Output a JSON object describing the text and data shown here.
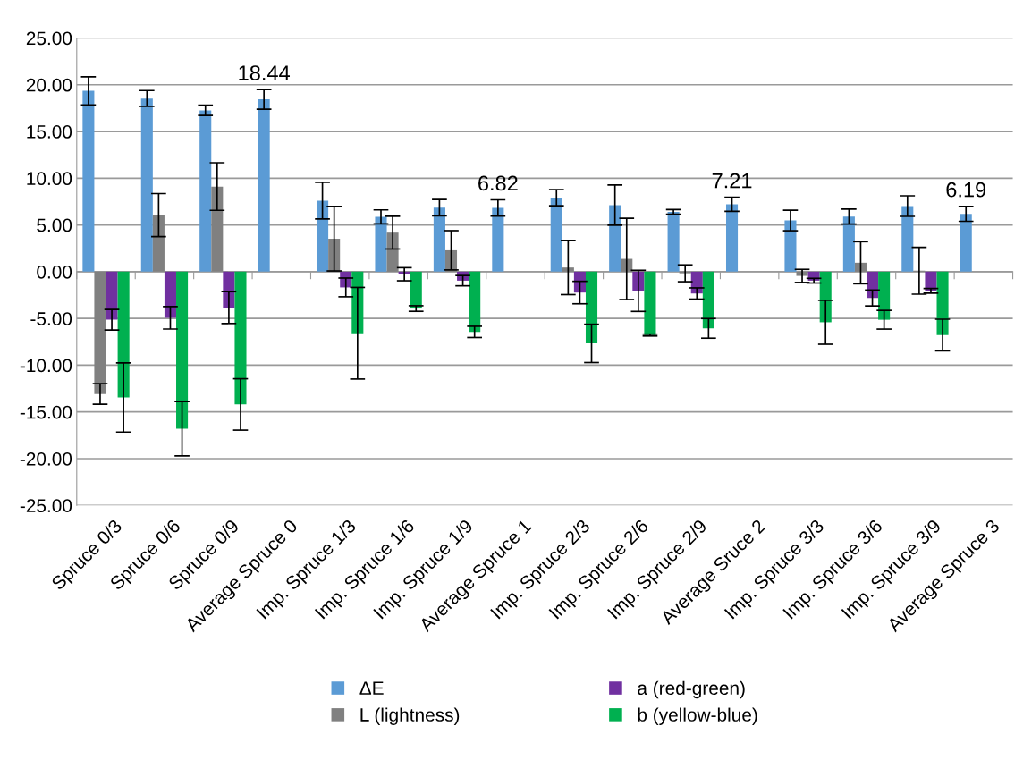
{
  "chart_data": {
    "type": "bar",
    "categories": [
      "Spruce 0/3",
      "Spruce 0/6",
      "Spruce 0/9",
      "Average Spruce 0",
      "Imp. Spruce 1/3",
      "Imp. Spruce 1/6",
      "Imp. Spruce 1/9",
      "Average Spruce 1",
      "Imp. Spruce 2/3",
      "Imp. Spruce 2/6",
      "Imp. Spruce 2/9",
      "Average Sruce 2",
      "Imp. Spruce 3/3",
      "Imp. Spruce 3/6",
      "Imp. Spruce 3/9",
      "Average Spruce 3"
    ],
    "series": [
      {
        "name": "ΔE",
        "color": "#5b9bd5",
        "values": [
          19.35,
          18.53,
          17.26,
          18.44,
          7.6,
          5.86,
          6.85,
          6.82,
          7.91,
          7.12,
          6.4,
          7.21,
          5.48,
          5.89,
          7.02,
          6.19
        ],
        "errors": [
          1.5,
          0.85,
          0.55,
          1.05,
          1.95,
          0.75,
          0.87,
          0.87,
          0.86,
          2.15,
          0.25,
          0.75,
          1.1,
          0.8,
          1.1,
          0.8
        ],
        "value_labels": [
          null,
          null,
          null,
          "18.44",
          null,
          null,
          null,
          "6.82",
          null,
          null,
          null,
          "7.21",
          null,
          null,
          null,
          "6.19"
        ]
      },
      {
        "name": "L (lightness)",
        "color": "#808080",
        "values": [
          -13.08,
          6.06,
          9.11,
          null,
          3.53,
          4.18,
          2.29,
          null,
          0.45,
          1.37,
          -0.17,
          null,
          -0.45,
          0.96,
          0.1,
          null
        ],
        "errors": [
          1.1,
          2.3,
          2.55,
          null,
          3.45,
          1.75,
          2.1,
          null,
          2.9,
          4.35,
          0.9,
          null,
          0.7,
          2.25,
          2.5,
          null
        ]
      },
      {
        "name": "a (red-green)",
        "color": "#7030a0",
        "values": [
          -5.14,
          -4.93,
          -3.84,
          null,
          -1.68,
          -0.27,
          -0.96,
          null,
          -2.23,
          -2.05,
          -2.33,
          null,
          -0.96,
          -2.81,
          -2.05,
          null
        ],
        "errors": [
          1.1,
          1.2,
          1.7,
          null,
          1.0,
          0.7,
          0.55,
          null,
          1.2,
          2.2,
          0.6,
          null,
          0.25,
          0.85,
          0.25,
          null
        ]
      },
      {
        "name": "b (yellow-blue)",
        "color": "#00b050",
        "values": [
          -13.46,
          -16.8,
          -14.2,
          null,
          -6.58,
          -3.94,
          -6.44,
          null,
          -7.67,
          -6.78,
          -6.06,
          null,
          -5.41,
          -5.14,
          -6.78,
          null
        ],
        "errors": [
          3.7,
          2.9,
          2.75,
          null,
          4.9,
          0.3,
          0.6,
          null,
          2.05,
          0.1,
          1.05,
          null,
          2.35,
          1.0,
          1.7,
          null
        ]
      }
    ],
    "ylim": [
      -25,
      25
    ],
    "yticks": [
      {
        "value": -25,
        "label": "-25.00"
      },
      {
        "value": -20,
        "label": "-20.00"
      },
      {
        "value": -15,
        "label": "-15.00"
      },
      {
        "value": -10,
        "label": "-10.00"
      },
      {
        "value": -5,
        "label": "-5.00"
      },
      {
        "value": 0,
        "label": "0.00"
      },
      {
        "value": 5,
        "label": "5.00"
      },
      {
        "value": 10,
        "label": "10.00"
      },
      {
        "value": 15,
        "label": "15.00"
      },
      {
        "value": 20,
        "label": "20.00"
      },
      {
        "value": 25,
        "label": "25.00"
      }
    ],
    "grid": "y",
    "legend": "bottom"
  }
}
